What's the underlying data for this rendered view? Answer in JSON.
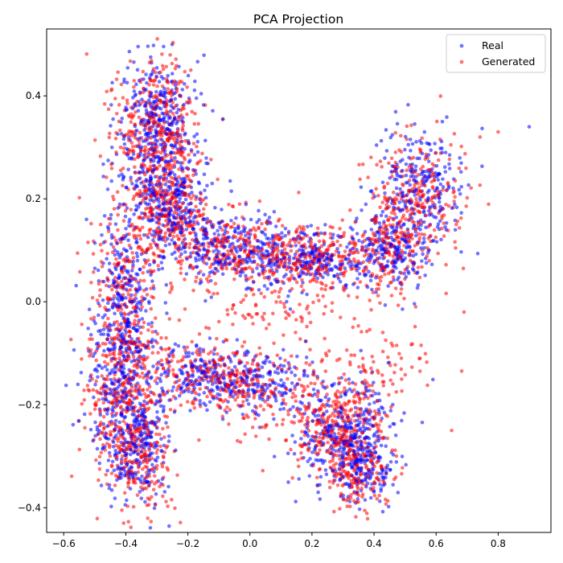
{
  "chart_data": {
    "type": "scatter",
    "title": "PCA Projection",
    "xlabel": "",
    "ylabel": "",
    "xlim": [
      -0.655,
      0.97
    ],
    "ylim": [
      -0.448,
      0.53
    ],
    "xticks": [
      -0.6,
      -0.4,
      -0.2,
      0.0,
      0.2,
      0.4,
      0.6,
      0.8
    ],
    "xtick_labels": [
      "−0.6",
      "−0.4",
      "−0.2",
      "0.0",
      "0.2",
      "0.4",
      "0.6",
      "0.8"
    ],
    "yticks": [
      -0.4,
      -0.2,
      0.0,
      0.2,
      0.4
    ],
    "ytick_labels": [
      "−0.4",
      "−0.2",
      "0.0",
      "0.2",
      "0.4"
    ],
    "grid": false,
    "legend_position": "top-right",
    "marker_alpha": 0.55,
    "series": [
      {
        "name": "Real",
        "color": "#0000ff",
        "clusters": [
          {
            "x": -0.3,
            "y": 0.33,
            "sx": 0.065,
            "sy": 0.07,
            "n": 400
          },
          {
            "x": -0.25,
            "y": 0.18,
            "sx": 0.06,
            "sy": 0.05,
            "n": 250
          },
          {
            "x": -0.4,
            "y": 0.0,
            "sx": 0.05,
            "sy": 0.1,
            "n": 300
          },
          {
            "x": -0.4,
            "y": -0.2,
            "sx": 0.06,
            "sy": 0.08,
            "n": 300
          },
          {
            "x": -0.36,
            "y": -0.3,
            "sx": 0.05,
            "sy": 0.05,
            "n": 150
          },
          {
            "x": -0.05,
            "y": 0.1,
            "sx": 0.1,
            "sy": 0.03,
            "n": 250
          },
          {
            "x": 0.2,
            "y": 0.08,
            "sx": 0.1,
            "sy": 0.03,
            "n": 250
          },
          {
            "x": 0.45,
            "y": 0.1,
            "sx": 0.07,
            "sy": 0.04,
            "n": 200
          },
          {
            "x": 0.55,
            "y": 0.22,
            "sx": 0.07,
            "sy": 0.06,
            "n": 250
          },
          {
            "x": -0.15,
            "y": -0.14,
            "sx": 0.08,
            "sy": 0.03,
            "n": 200
          },
          {
            "x": 0.05,
            "y": -0.16,
            "sx": 0.08,
            "sy": 0.03,
            "n": 150
          },
          {
            "x": 0.3,
            "y": -0.26,
            "sx": 0.08,
            "sy": 0.05,
            "n": 350
          },
          {
            "x": 0.37,
            "y": -0.32,
            "sx": 0.05,
            "sy": 0.04,
            "n": 120
          }
        ],
        "outliers": [
          [
            0.9,
            0.34
          ],
          [
            0.62,
            0.35
          ],
          [
            0.22,
            -0.37
          ]
        ]
      },
      {
        "name": "Generated",
        "color": "#ff0000",
        "clusters": [
          {
            "x": -0.3,
            "y": 0.33,
            "sx": 0.07,
            "sy": 0.07,
            "n": 400
          },
          {
            "x": -0.25,
            "y": 0.18,
            "sx": 0.06,
            "sy": 0.05,
            "n": 250
          },
          {
            "x": -0.4,
            "y": 0.0,
            "sx": 0.06,
            "sy": 0.1,
            "n": 300
          },
          {
            "x": -0.4,
            "y": -0.2,
            "sx": 0.065,
            "sy": 0.08,
            "n": 300
          },
          {
            "x": -0.36,
            "y": -0.3,
            "sx": 0.05,
            "sy": 0.05,
            "n": 150
          },
          {
            "x": -0.05,
            "y": 0.1,
            "sx": 0.1,
            "sy": 0.035,
            "n": 250
          },
          {
            "x": 0.2,
            "y": 0.08,
            "sx": 0.1,
            "sy": 0.035,
            "n": 250
          },
          {
            "x": 0.45,
            "y": 0.11,
            "sx": 0.07,
            "sy": 0.045,
            "n": 200
          },
          {
            "x": 0.55,
            "y": 0.21,
            "sx": 0.07,
            "sy": 0.06,
            "n": 220
          },
          {
            "x": -0.15,
            "y": -0.14,
            "sx": 0.09,
            "sy": 0.035,
            "n": 200
          },
          {
            "x": 0.05,
            "y": -0.17,
            "sx": 0.09,
            "sy": 0.04,
            "n": 150
          },
          {
            "x": 0.3,
            "y": -0.25,
            "sx": 0.08,
            "sy": 0.05,
            "n": 350
          },
          {
            "x": 0.1,
            "y": -0.02,
            "sx": 0.12,
            "sy": 0.03,
            "n": 80
          },
          {
            "x": 0.4,
            "y": -0.12,
            "sx": 0.1,
            "sy": 0.04,
            "n": 80
          },
          {
            "x": 0.35,
            "y": -0.34,
            "sx": 0.05,
            "sy": 0.03,
            "n": 120
          }
        ],
        "outliers": [
          [
            0.8,
            0.33
          ],
          [
            0.69,
            -0.02
          ],
          [
            -0.04,
            -0.27
          ],
          [
            0.65,
            -0.25
          ]
        ]
      }
    ]
  }
}
